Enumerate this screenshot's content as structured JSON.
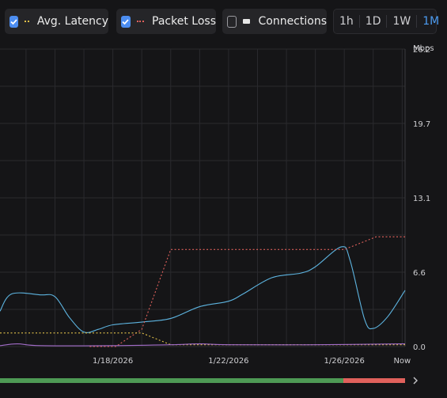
{
  "legend": {
    "items": [
      {
        "label": "Avg. Latency",
        "checked": true,
        "color": "#e2c14a",
        "style": "dotted"
      },
      {
        "label": "Packet Loss",
        "checked": true,
        "color": "#e0615c",
        "style": "dotted"
      },
      {
        "label": "Connections",
        "checked": false,
        "color": "#e6e6e6",
        "style": "solid"
      }
    ]
  },
  "time_range": {
    "options": [
      "1h",
      "1D",
      "1W",
      "1M"
    ],
    "selected": "1M"
  },
  "chart_data": {
    "type": "line",
    "ylabel": "Mbps",
    "yticks": [
      "0.0",
      "6.6",
      "13.1",
      "19.7",
      "26.2"
    ],
    "ylim": [
      0,
      32.8
    ],
    "xticks": [
      {
        "label": "1/18/2026",
        "x": 3
      },
      {
        "label": "1/22/2026",
        "x": 7
      },
      {
        "label": "1/26/2026",
        "x": 11
      },
      {
        "label": "Now",
        "x": 13
      }
    ],
    "xlim": [
      -0.9,
      13.1
    ],
    "grid": true,
    "series": [
      {
        "key": "bandwidth",
        "color": "#5db4e0",
        "points": [
          [
            -0.9,
            3.9
          ],
          [
            -0.5,
            5.8
          ],
          [
            0.5,
            5.7
          ],
          [
            1.0,
            5.5
          ],
          [
            1.5,
            3.2
          ],
          [
            2.0,
            1.6
          ],
          [
            2.5,
            1.9
          ],
          [
            3.0,
            2.4
          ],
          [
            4.0,
            2.7
          ],
          [
            5.0,
            3.1
          ],
          [
            6.0,
            4.4
          ],
          [
            7.0,
            5.0
          ],
          [
            7.5,
            5.8
          ],
          [
            8.5,
            7.6
          ],
          [
            9.5,
            8.1
          ],
          [
            10.0,
            8.8
          ],
          [
            10.9,
            11.0
          ],
          [
            11.2,
            9.5
          ],
          [
            11.7,
            3.0
          ],
          [
            12.0,
            2.0
          ],
          [
            12.5,
            3.3
          ],
          [
            13.1,
            6.2
          ]
        ]
      },
      {
        "key": "packet_loss",
        "color": "#e0615c",
        "dashed": true,
        "points": [
          [
            2.2,
            0.0
          ],
          [
            3.1,
            0.0
          ],
          [
            4.0,
            1.9
          ],
          [
            5.0,
            10.7
          ],
          [
            11.0,
            10.7
          ],
          [
            12.1,
            12.1
          ],
          [
            13.1,
            12.1
          ]
        ]
      },
      {
        "key": "avg_latency",
        "color": "#e2c14a",
        "dashed": true,
        "points": [
          [
            -0.9,
            1.5
          ],
          [
            4.0,
            1.5
          ],
          [
            5.0,
            0.2
          ],
          [
            13.1,
            0.2
          ]
        ]
      },
      {
        "key": "connections",
        "color": "#a36dc9",
        "points": [
          [
            -0.9,
            0.1
          ],
          [
            -0.3,
            0.3
          ],
          [
            0.5,
            0.1
          ],
          [
            3.0,
            0.1
          ],
          [
            5.0,
            0.2
          ],
          [
            6.0,
            0.3
          ],
          [
            7.0,
            0.2
          ],
          [
            10.0,
            0.2
          ],
          [
            13.1,
            0.3
          ]
        ]
      }
    ]
  },
  "scroll": {
    "green_fraction": 0.848,
    "next_icon": "chevron-right"
  }
}
